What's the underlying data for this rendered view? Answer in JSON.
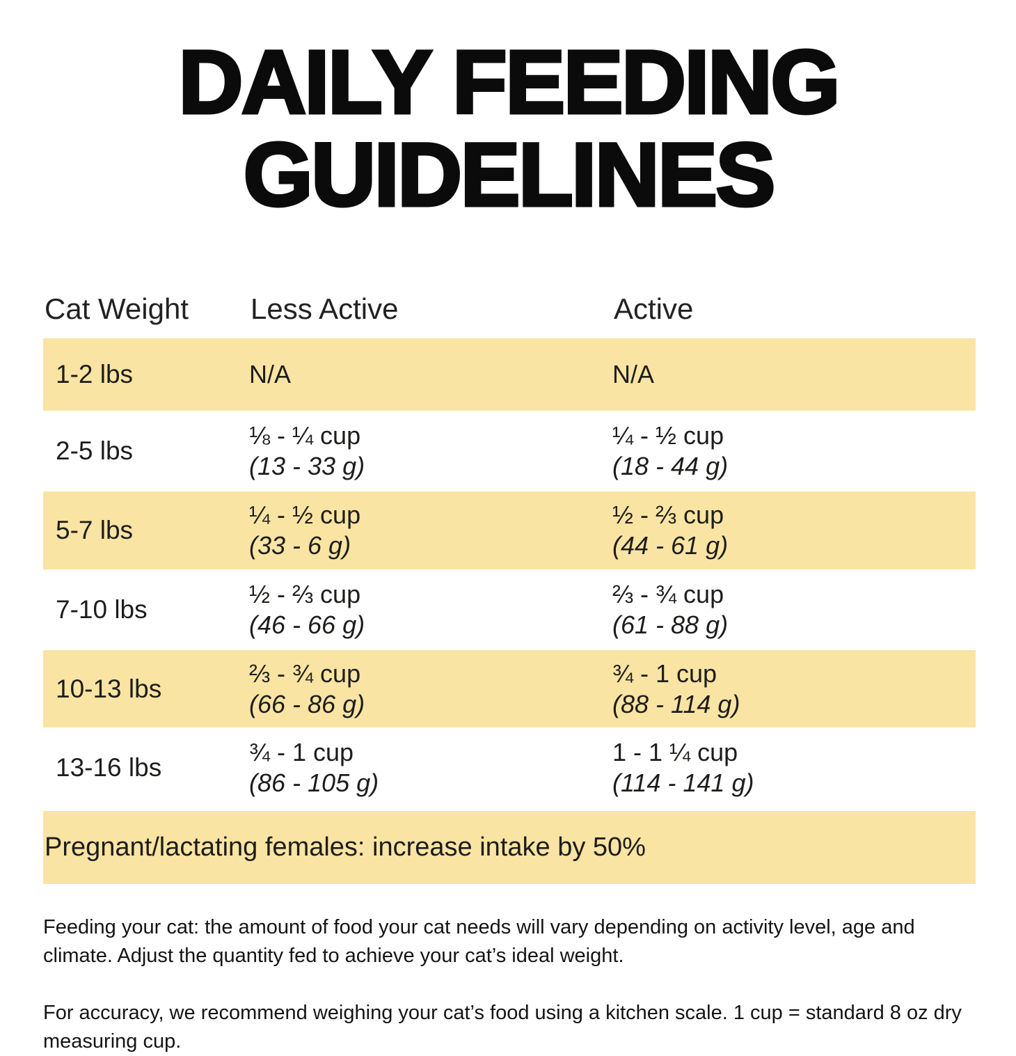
{
  "title": {
    "line1": "DAILY FEEDING",
    "line2": "GUIDELINES"
  },
  "table": {
    "headers": [
      "Cat Weight",
      "Less Active",
      "Active"
    ],
    "rows": [
      {
        "weight": "1-2 lbs",
        "less_active": {
          "cups": "N/A",
          "grams": ""
        },
        "active": {
          "cups": "N/A",
          "grams": ""
        }
      },
      {
        "weight": "2-5 lbs",
        "less_active": {
          "cups": "⅛ - ¼ cup",
          "grams": "(13 - 33 g)"
        },
        "active": {
          "cups": "¼ - ½ cup",
          "grams": "(18 - 44 g)"
        }
      },
      {
        "weight": "5-7 lbs",
        "less_active": {
          "cups": "¼ - ½ cup",
          "grams": "(33 - 6 g)"
        },
        "active": {
          "cups": "½ - ⅔ cup",
          "grams": "(44 - 61 g)"
        }
      },
      {
        "weight": "7-10 lbs",
        "less_active": {
          "cups": "½ - ⅔ cup",
          "grams": "(46 - 66 g)"
        },
        "active": {
          "cups": "⅔ - ¾ cup",
          "grams": "(61 - 88 g)"
        }
      },
      {
        "weight": "10-13 lbs",
        "less_active": {
          "cups": "⅔ - ¾ cup",
          "grams": "(66 - 86 g)"
        },
        "active": {
          "cups": "¾ - 1 cup",
          "grams": "(88 - 114 g)"
        }
      },
      {
        "weight": "13-16 lbs",
        "less_active": {
          "cups": "¾ - 1 cup",
          "grams": "(86 - 105 g)"
        },
        "active": {
          "cups": "1 - 1 ¼ cup",
          "grams": "(114 - 141 g)"
        }
      }
    ]
  },
  "banner": "Pregnant/lactating females: increase intake by 50%",
  "notes": [
    "Feeding your cat: the amount of food your cat needs will vary depending on activity level, age and climate. Adjust the quantity fed to achieve your cat’s ideal weight.",
    "For accuracy, we recommend weighing your cat’s food using a kitchen scale. 1 cup = standard 8 oz dry measuring cup."
  ],
  "colors": {
    "highlight": "#f9e4a3",
    "text": "#1d1d1b",
    "background": "#ffffff"
  }
}
